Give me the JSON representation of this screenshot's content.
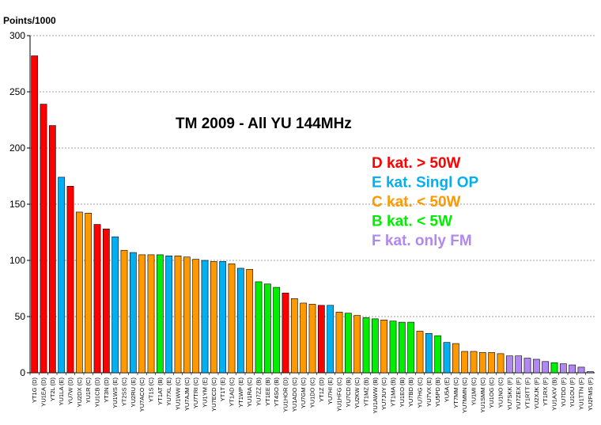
{
  "chart_data": {
    "type": "bar",
    "title": "TM 2009 - All YU 144MHz",
    "ylabel": "Points/1000",
    "xlabel": "",
    "ylim": [
      0,
      300
    ],
    "yticks": [
      0,
      50,
      100,
      150,
      200,
      250,
      300
    ],
    "grid": "horizontal dashed",
    "legend_placement": "top-right",
    "colors": {
      "D": "#ff0000",
      "E": "#00b0f0",
      "C": "#ff9900",
      "B": "#00ee00",
      "F": "#b088f0"
    },
    "legend": [
      {
        "category": "D",
        "label": "D kat. > 50W"
      },
      {
        "category": "E",
        "label": "E kat. Singl OP"
      },
      {
        "category": "C",
        "label": "C kat. < 50W"
      },
      {
        "category": "B",
        "label": "B kat. < 5W"
      },
      {
        "category": "F",
        "label": "F kat. only FM"
      }
    ],
    "categories": [
      "YT1G (D)",
      "YU1EA (D)",
      "YT2L (D)",
      "YU1LA (E)",
      "YU7W (D)",
      "YU2DX (C)",
      "YU1R (C)",
      "YU1CB (D)",
      "YT3N (D)",
      "YU1WS (E)",
      "YT2SS (C)",
      "YU2RU (E)",
      "YU7ACO (C)",
      "YT1S (C)",
      "YT1AT (B)",
      "YU7XL (E)",
      "YU1WW (C)",
      "YU7AJM (C)",
      "YU7TRI (C)",
      "YU1YM (E)",
      "YU7ECD (C)",
      "YT1T (E)",
      "YT1AD (C)",
      "YT1WP (E)",
      "YU1RA (C)",
      "YU7ZZ (B)",
      "YT1EE (B)",
      "YT4SO (B)",
      "YU1HOR (D)",
      "YU1ADO (C)",
      "YU7GM (C)",
      "YU1DO (C)",
      "YT1Z (D)",
      "YU7HI (E)",
      "YU1HFG (C)",
      "YU7CD (B)",
      "YU2KW (C)",
      "YT1MZ (B)",
      "YU1AWW (B)",
      "YU7JUY (C)",
      "YT1MA (B)",
      "YU1EO (B)",
      "YU7BD (B)",
      "YU7HG (C)",
      "YU7VX (E)",
      "YU5PD (B)",
      "YU5A (E)",
      "YT7MM (C)",
      "YU7MMN (C)",
      "YU1MI (C)",
      "YU1SMM (C)",
      "YU1OG (C)",
      "YU1NO (C)",
      "YU7SKK (F)",
      "YU7ZEX (F)",
      "YT1RTT (F)",
      "YU2XJK (F)",
      "YT1RX (F)",
      "YU1AXV (B)",
      "YU7DD (F)",
      "YU1OU (F)",
      "YU1TTN (F)",
      "YU2FMS (F)"
    ],
    "kats": [
      "D",
      "D",
      "D",
      "E",
      "D",
      "C",
      "C",
      "D",
      "D",
      "E",
      "C",
      "E",
      "C",
      "C",
      "B",
      "E",
      "C",
      "C",
      "C",
      "E",
      "C",
      "E",
      "C",
      "E",
      "C",
      "B",
      "B",
      "B",
      "D",
      "C",
      "C",
      "C",
      "D",
      "E",
      "C",
      "B",
      "C",
      "B",
      "B",
      "C",
      "B",
      "B",
      "B",
      "C",
      "E",
      "B",
      "E",
      "C",
      "C",
      "C",
      "C",
      "C",
      "C",
      "F",
      "F",
      "F",
      "F",
      "F",
      "B",
      "F",
      "F",
      "F",
      "F"
    ],
    "values": [
      282,
      239,
      220,
      174,
      166,
      143,
      142,
      132,
      128,
      121,
      109,
      107,
      105,
      105,
      105,
      104,
      104,
      103,
      101,
      100,
      99,
      99,
      97,
      93,
      92,
      81,
      79,
      76,
      71,
      66,
      62,
      61,
      60,
      60,
      54,
      53,
      51,
      49,
      48,
      47,
      46,
      45,
      45,
      37,
      35,
      33,
      27,
      26,
      19,
      19,
      18,
      18,
      17,
      15,
      15,
      13,
      12,
      10,
      9,
      8,
      7,
      5,
      1
    ]
  }
}
